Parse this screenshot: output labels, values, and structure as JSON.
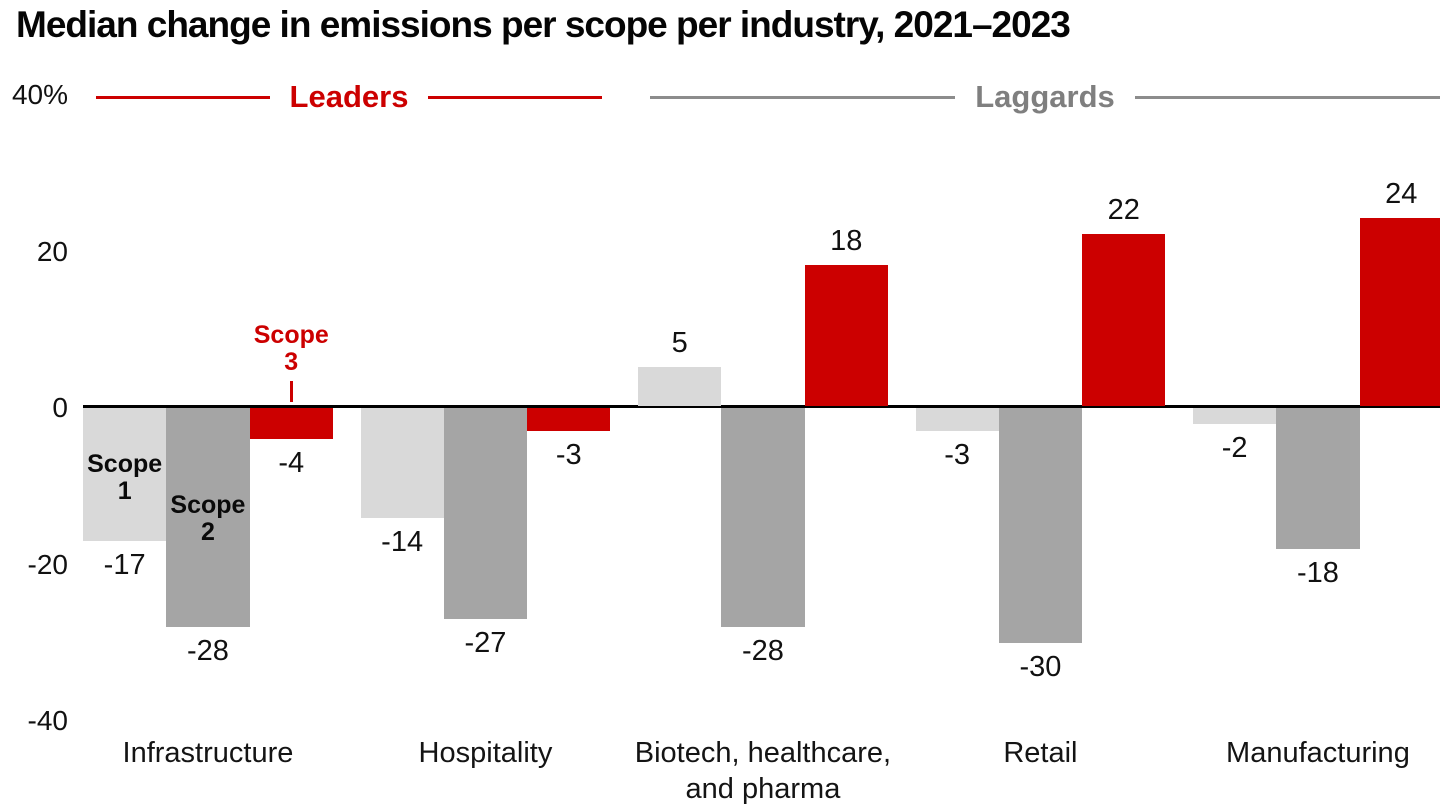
{
  "title": "Median change in emissions per scope per industry, 2021–2023",
  "header": {
    "leaders_label": "Leaders",
    "laggards_label": "Laggards"
  },
  "colors": {
    "scope1": "#d9d9d9",
    "scope2": "#a5a5a5",
    "scope3": "#cc0000",
    "leaders_accent": "#cc0000",
    "laggards_accent": "#7f7f7f",
    "axis": "#000000"
  },
  "annotations": {
    "scope1_label": "Scope 1",
    "scope2_label": "Scope 2",
    "scope3_label": "Scope 3"
  },
  "chart_data": {
    "type": "bar",
    "title": "Median change in emissions per scope per industry, 2021–2023",
    "categories": [
      "Infrastructure",
      "Hospitality",
      "Biotech, healthcare, and pharma",
      "Retail",
      "Manufacturing"
    ],
    "series": [
      {
        "name": "Scope 1",
        "color": "#d9d9d9",
        "values": [
          -17,
          -14,
          5,
          -3,
          -2
        ]
      },
      {
        "name": "Scope 2",
        "color": "#a5a5a5",
        "values": [
          -28,
          -27,
          -28,
          -30,
          -18
        ]
      },
      {
        "name": "Scope 3",
        "color": "#cc0000",
        "values": [
          -4,
          -3,
          18,
          22,
          24
        ]
      }
    ],
    "xlabel": "",
    "ylabel": "",
    "unit": "%",
    "ylim": [
      -40,
      40
    ],
    "yticks": [
      {
        "value": 40,
        "label": "40%"
      },
      {
        "value": 20,
        "label": "20"
      },
      {
        "value": 0,
        "label": "0"
      },
      {
        "value": -20,
        "label": "-20"
      },
      {
        "value": -40,
        "label": "-40"
      }
    ],
    "grid": false,
    "legend_position": "in-plot annotations on first group",
    "sections": [
      {
        "label": "Leaders",
        "categories": [
          "Infrastructure",
          "Hospitality"
        ]
      },
      {
        "label": "Laggards",
        "categories": [
          "Biotech, healthcare, and pharma",
          "Retail",
          "Manufacturing"
        ]
      }
    ]
  }
}
